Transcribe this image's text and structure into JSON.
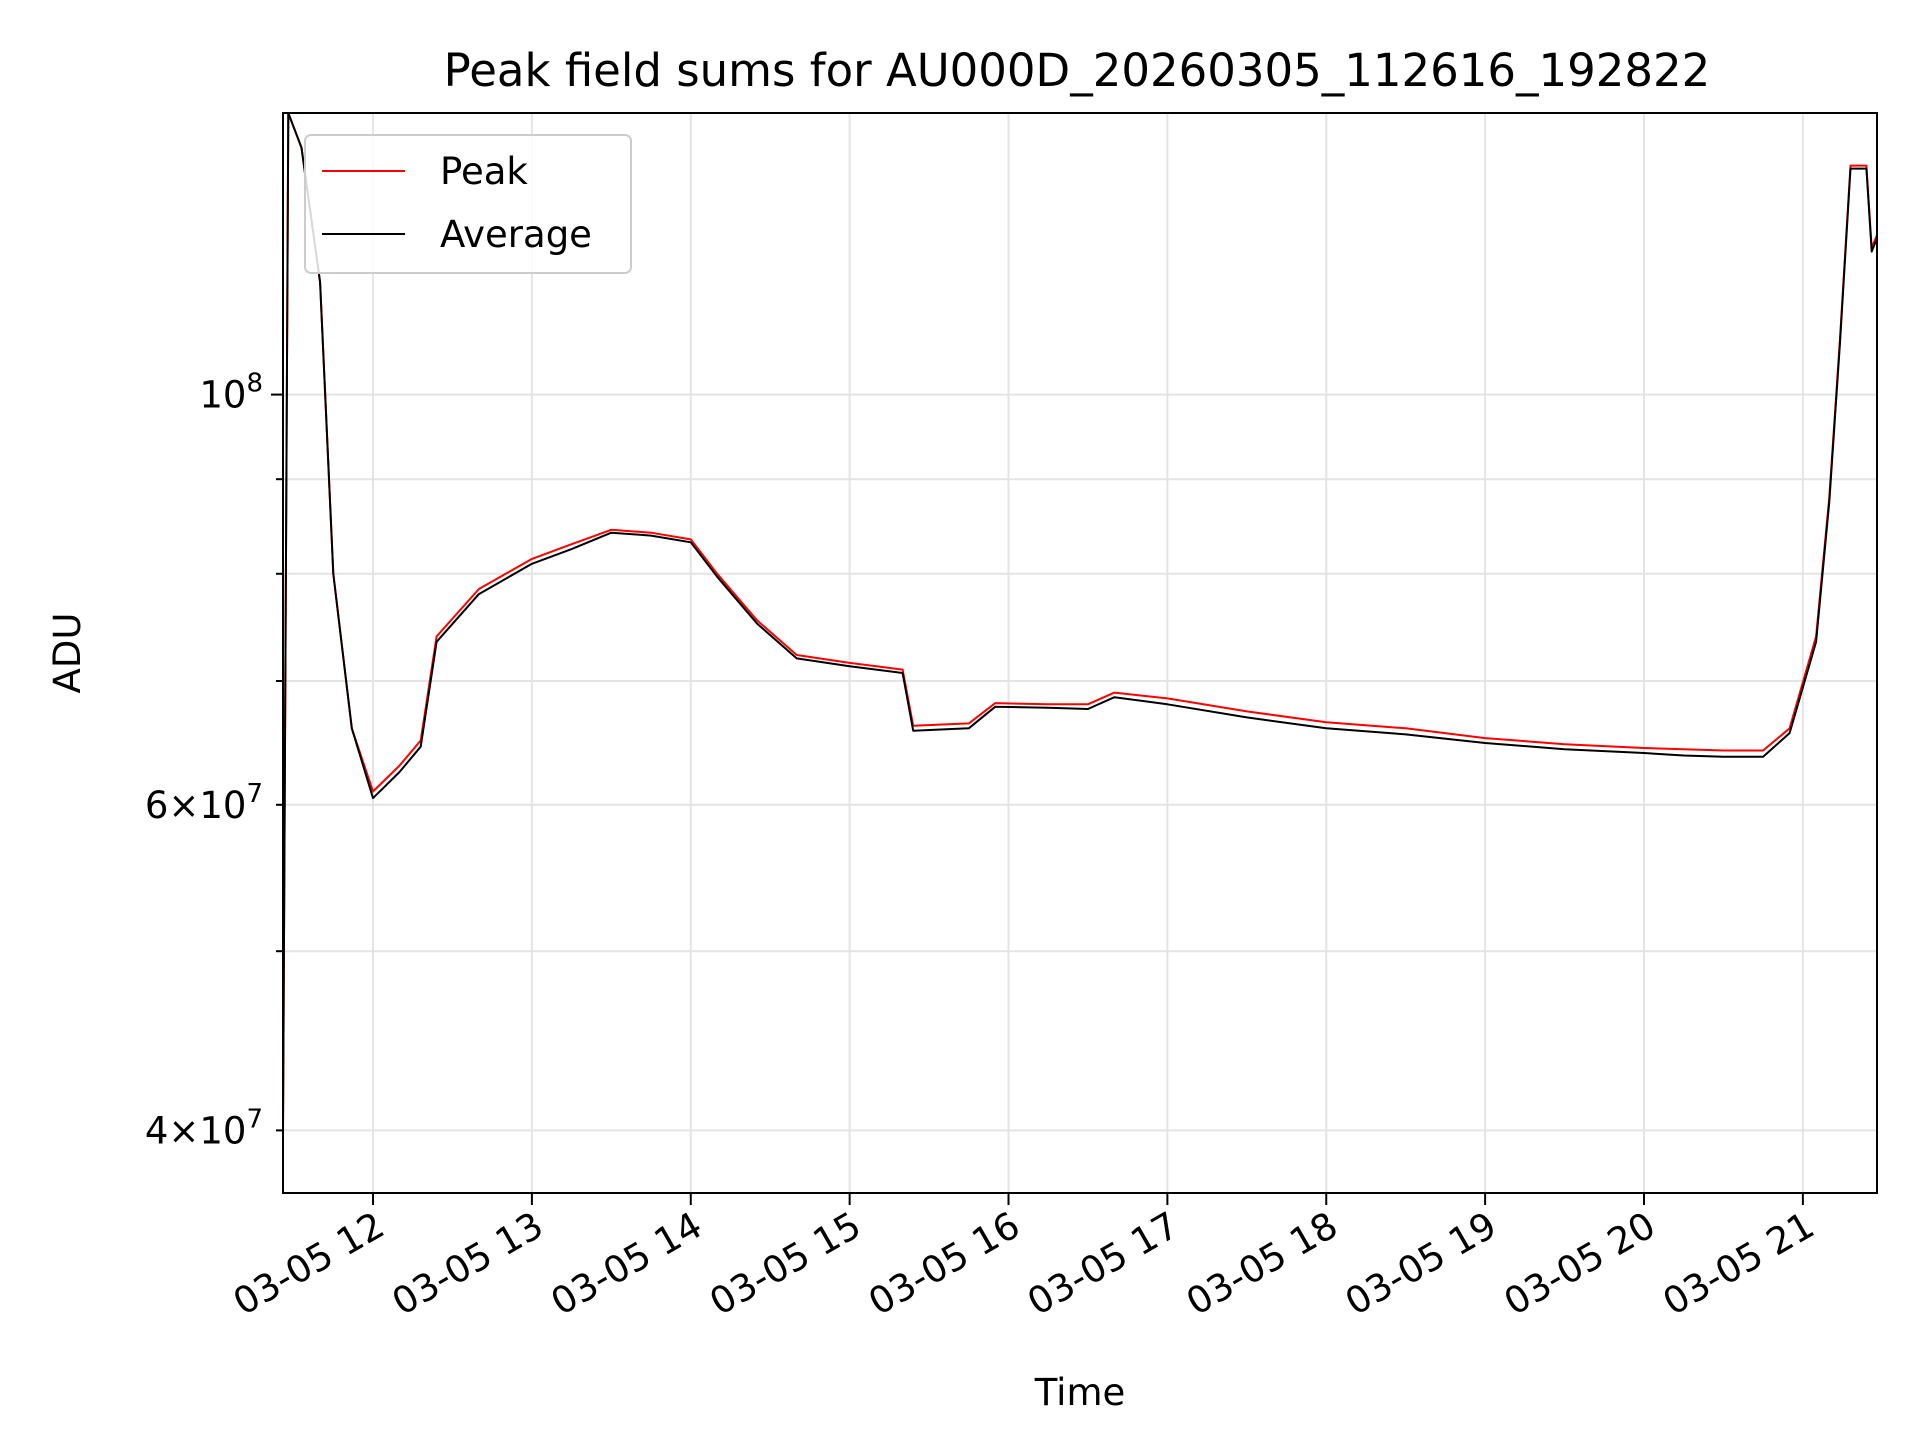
{
  "chart_data": {
    "type": "line",
    "title": "Peak field sums for AU000D_20260305_112616_192822",
    "xlabel": "Time",
    "ylabel": "ADU",
    "yscale": "log",
    "xlim": [
      "03-05 11:26",
      "03-05 21:28"
    ],
    "ylim": [
      37000000,
      142000000
    ],
    "grid": true,
    "legend_position": "upper-left",
    "x_ticks": [
      "03-05 12",
      "03-05 13",
      "03-05 14",
      "03-05 15",
      "03-05 16",
      "03-05 17",
      "03-05 18",
      "03-05 19",
      "03-05 20",
      "03-05 21"
    ],
    "y_ticks_major": [
      {
        "value": 100000000,
        "base": "10",
        "exp": "8",
        "coef": ""
      }
    ],
    "y_ticks_minor": [
      {
        "value": 40000000,
        "base": "10",
        "exp": "7",
        "coef": "4"
      },
      {
        "value": 60000000,
        "base": "10",
        "exp": "7",
        "coef": "6"
      }
    ],
    "x": [
      "03-05 11:26",
      "03-05 11:28",
      "03-05 11:33",
      "03-05 11:40",
      "03-05 11:45",
      "03-05 11:52",
      "03-05 12:00",
      "03-05 12:10",
      "03-05 12:18",
      "03-05 12:24",
      "03-05 12:40",
      "03-05 13:00",
      "03-05 13:15",
      "03-05 13:30",
      "03-05 13:45",
      "03-05 14:00",
      "03-05 14:10",
      "03-05 14:25",
      "03-05 14:40",
      "03-05 15:00",
      "03-05 15:20",
      "03-05 15:24",
      "03-05 15:45",
      "03-05 15:55",
      "03-05 16:15",
      "03-05 16:30",
      "03-05 16:40",
      "03-05 17:00",
      "03-05 17:30",
      "03-05 18:00",
      "03-05 18:30",
      "03-05 19:00",
      "03-05 19:30",
      "03-05 20:00",
      "03-05 20:15",
      "03-05 20:30",
      "03-05 20:45",
      "03-05 20:55",
      "03-05 21:05",
      "03-05 21:10",
      "03-05 21:14",
      "03-05 21:18",
      "03-05 21:24",
      "03-05 21:26",
      "03-05 21:28"
    ],
    "series": [
      {
        "name": "Peak",
        "color": "#ff0000",
        "values": [
          40000000,
          142000000,
          136000000,
          115000000,
          80000000,
          66000000,
          61000000,
          63000000,
          65000000,
          74000000,
          78500000,
          81500000,
          83000000,
          84500000,
          84200000,
          83500000,
          80000000,
          75500000,
          72300000,
          71600000,
          71000000,
          66200000,
          66400000,
          68100000,
          68000000,
          68000000,
          69000000,
          68500000,
          67400000,
          66500000,
          66000000,
          65200000,
          64700000,
          64400000,
          64300000,
          64200000,
          64200000,
          66000000,
          74000000,
          88000000,
          107000000,
          133000000,
          133000000,
          120000000,
          122000000
        ]
      },
      {
        "name": "Average",
        "color": "#000000",
        "values": [
          40000000,
          142000000,
          136000000,
          115000000,
          80000000,
          66000000,
          60500000,
          62500000,
          64500000,
          73500000,
          78000000,
          81000000,
          82500000,
          84200000,
          83900000,
          83200000,
          79700000,
          75200000,
          72000000,
          71300000,
          70700000,
          65800000,
          66000000,
          67800000,
          67700000,
          67600000,
          68600000,
          68000000,
          66900000,
          66000000,
          65500000,
          64800000,
          64300000,
          64000000,
          63800000,
          63700000,
          63700000,
          65600000,
          73500000,
          87500000,
          106500000,
          132500000,
          132500000,
          119500000,
          121500000
        ]
      }
    ]
  }
}
